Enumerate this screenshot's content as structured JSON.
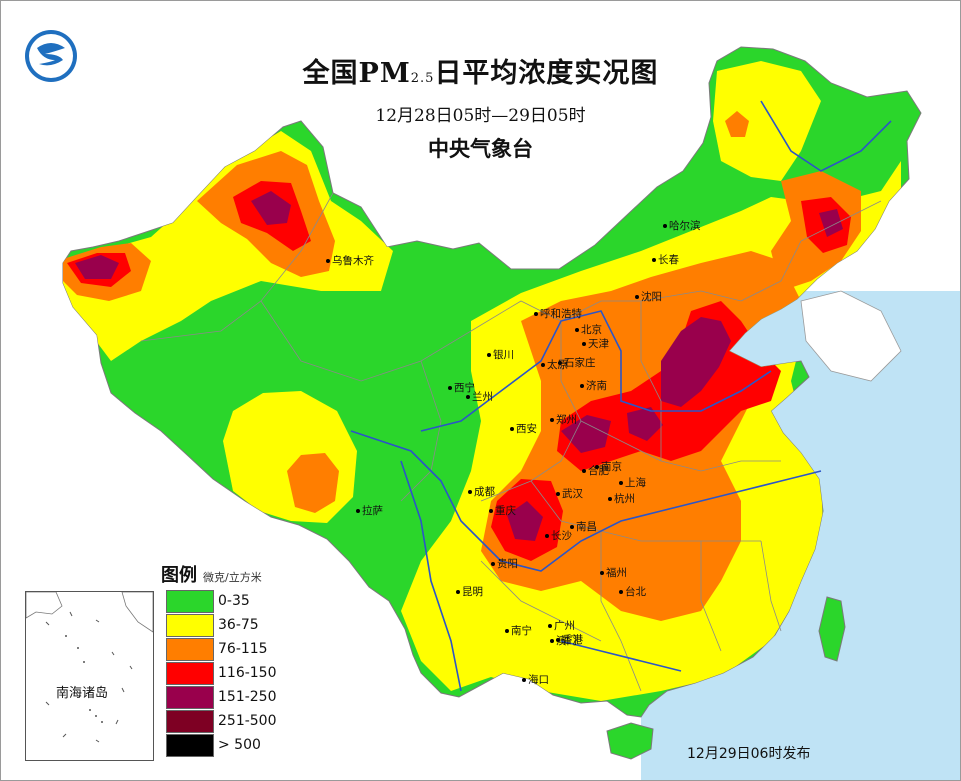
{
  "header": {
    "title_main": "全国PM",
    "title_sub": "2.5",
    "title_tail": "日平均浓度实况图",
    "period": "12月28日05时—29日05时",
    "agency": "中央气象台"
  },
  "legend": {
    "title": "图例",
    "unit": "微克/立方米",
    "items": [
      {
        "label": "0-35",
        "color": "#2bd62b"
      },
      {
        "label": "36-75",
        "color": "#ffff00"
      },
      {
        "label": "76-115",
        "color": "#ff7e00"
      },
      {
        "label": "116-150",
        "color": "#ff0000"
      },
      {
        "label": "151-250",
        "color": "#99004c"
      },
      {
        "label": "251-500",
        "color": "#7e0023"
      },
      {
        "label": "> 500",
        "color": "#000000"
      }
    ]
  },
  "inset": {
    "label": "南海诸岛"
  },
  "published": "12月29日06时发布",
  "colors": {
    "sea": "#bfe3f5",
    "land_base": "#2bd62b",
    "river": "#2b55c8",
    "border": "#8a8a8a"
  },
  "cities": [
    {
      "name": "乌鲁木齐",
      "lon": 87.6,
      "lat": 43.8
    },
    {
      "name": "哈尔滨",
      "lon": 126.6,
      "lat": 45.8
    },
    {
      "name": "长春",
      "lon": 125.3,
      "lat": 43.9
    },
    {
      "name": "沈阳",
      "lon": 123.4,
      "lat": 41.8
    },
    {
      "name": "呼和浩特",
      "lon": 111.7,
      "lat": 40.8
    },
    {
      "name": "北京",
      "lon": 116.4,
      "lat": 39.9
    },
    {
      "name": "天津",
      "lon": 117.2,
      "lat": 39.1
    },
    {
      "name": "银川",
      "lon": 106.3,
      "lat": 38.5
    },
    {
      "name": "石家庄",
      "lon": 114.5,
      "lat": 38.0
    },
    {
      "name": "太原",
      "lon": 112.5,
      "lat": 37.9
    },
    {
      "name": "济南",
      "lon": 117.0,
      "lat": 36.7
    },
    {
      "name": "西宁",
      "lon": 101.8,
      "lat": 36.6
    },
    {
      "name": "兰州",
      "lon": 103.8,
      "lat": 36.1
    },
    {
      "name": "郑州",
      "lon": 113.6,
      "lat": 34.8
    },
    {
      "name": "西安",
      "lon": 108.9,
      "lat": 34.3
    },
    {
      "name": "合肥",
      "lon": 117.3,
      "lat": 31.9
    },
    {
      "name": "南京",
      "lon": 118.8,
      "lat": 32.1
    },
    {
      "name": "上海",
      "lon": 121.5,
      "lat": 31.2
    },
    {
      "name": "拉萨",
      "lon": 91.1,
      "lat": 29.6
    },
    {
      "name": "成都",
      "lon": 104.1,
      "lat": 30.7
    },
    {
      "name": "武汉",
      "lon": 114.3,
      "lat": 30.6
    },
    {
      "name": "杭州",
      "lon": 120.2,
      "lat": 30.3
    },
    {
      "name": "重庆",
      "lon": 106.5,
      "lat": 29.6
    },
    {
      "name": "南昌",
      "lon": 115.9,
      "lat": 28.7
    },
    {
      "name": "长沙",
      "lon": 113.0,
      "lat": 28.2
    },
    {
      "name": "贵阳",
      "lon": 106.7,
      "lat": 26.6
    },
    {
      "name": "福州",
      "lon": 119.3,
      "lat": 26.1
    },
    {
      "name": "台北",
      "lon": 121.5,
      "lat": 25.0
    },
    {
      "name": "昆明",
      "lon": 102.7,
      "lat": 25.0
    },
    {
      "name": "南宁",
      "lon": 108.3,
      "lat": 22.8
    },
    {
      "name": "广州",
      "lon": 113.3,
      "lat": 23.1
    },
    {
      "name": "香港",
      "lon": 114.2,
      "lat": 22.3
    },
    {
      "name": "澳门",
      "lon": 113.5,
      "lat": 22.2
    },
    {
      "name": "海口",
      "lon": 110.3,
      "lat": 20.0
    }
  ]
}
